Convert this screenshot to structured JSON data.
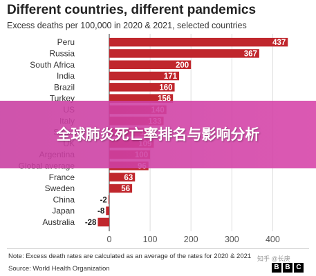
{
  "header": {
    "title": "Different countries, different pandemics",
    "subtitle": "Excess deaths per 100,000 in 2020 & 2021, selected countries"
  },
  "banner": {
    "text": "全球肺炎死亡率排名与影响分析"
  },
  "footer": {
    "note": "Note: Excess death rates are calculated as an average of the rates for 2020 & 2021",
    "source": "Source: World Health Organization",
    "logo_letters": [
      "B",
      "B",
      "C"
    ],
    "watermark": "知乎 @长庚"
  },
  "colors": {
    "bar": "#c0272d",
    "bar_label_text": "#ffffff",
    "axis": "#555555",
    "grid": "#dddddd"
  },
  "chart_data": {
    "type": "bar",
    "orientation": "horizontal",
    "categories": [
      "Peru",
      "Russia",
      "South Africa",
      "India",
      "Brazil",
      "Turkey",
      "US",
      "Italy",
      "Spain",
      "UK",
      "Argentina",
      "Global average",
      "France",
      "Sweden",
      "China",
      "Japan",
      "Australia"
    ],
    "values": [
      437,
      367,
      200,
      171,
      160,
      156,
      140,
      133,
      111,
      109,
      100,
      96,
      63,
      56,
      -2,
      -8,
      -28
    ],
    "title": "Different countries, different pandemics",
    "subtitle": "Excess deaths per 100,000 in 2020 & 2021, selected countries",
    "xlabel": "",
    "ylabel": "",
    "xlim": [
      -30,
      450
    ],
    "xticks": [
      0,
      100,
      200,
      300,
      400
    ],
    "grid": true,
    "legend": "none"
  }
}
